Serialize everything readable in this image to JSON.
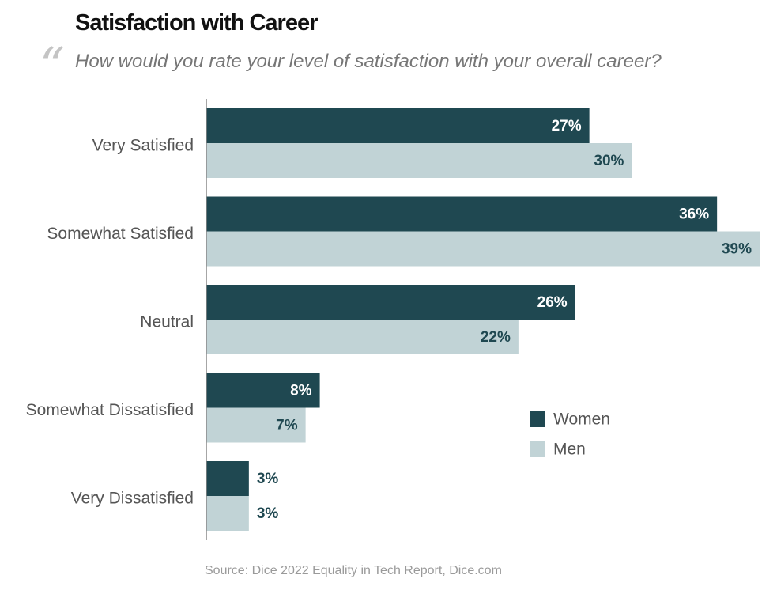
{
  "title": "Satisfaction with Career",
  "quote_mark": "“",
  "subtitle": "How would you rate your level of satisfaction with your overall career?",
  "source": "Source: Dice 2022 Equality in Tech Report, Dice.com",
  "colors": {
    "women": "#1f4851",
    "men": "#c1d3d6",
    "axis": "#888888",
    "category_text": "#555555",
    "value_text_dark": "#1f4851",
    "value_text_light": "#ffffff"
  },
  "chart_data": {
    "type": "bar",
    "orientation": "horizontal",
    "categories": [
      "Very Satisfied",
      "Somewhat Satisfied",
      "Neutral",
      "Somewhat Dissatisfied",
      "Very Dissatisfied"
    ],
    "series": [
      {
        "name": "Women",
        "values": [
          27,
          36,
          26,
          8,
          3
        ]
      },
      {
        "name": "Men",
        "values": [
          30,
          39,
          22,
          7,
          3
        ]
      }
    ],
    "value_suffix": "%",
    "xlim": [
      0,
      39
    ],
    "grid": false,
    "legend_position": "lower-right",
    "data_labels": true
  }
}
